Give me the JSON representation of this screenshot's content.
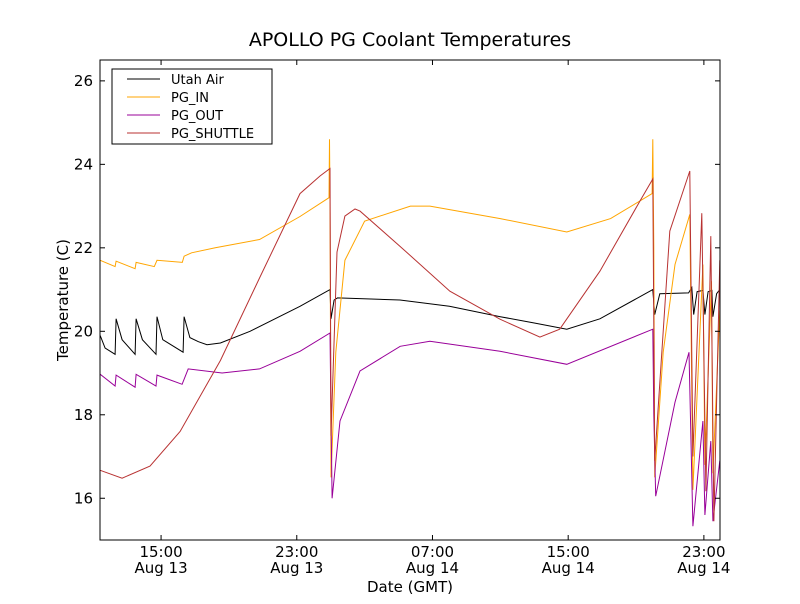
{
  "chart_data": {
    "type": "line",
    "title": "APOLLO PG Coolant Temperatures",
    "xlabel": "Date (GMT)",
    "ylabel": "Temperature (C)",
    "x_units": "hours since Aug 13 00:00 GMT",
    "xlim": [
      11.4,
      47.95
    ],
    "ylim": [
      15,
      26.5
    ],
    "grid": false,
    "legend_position": "top-left",
    "x_ticks": [
      {
        "value": 15,
        "time": "15:00",
        "date": "Aug 13"
      },
      {
        "value": 23,
        "time": "23:00",
        "date": "Aug 13"
      },
      {
        "value": 31,
        "time": "07:00",
        "date": "Aug 14"
      },
      {
        "value": 39,
        "time": "15:00",
        "date": "Aug 14"
      },
      {
        "value": 47,
        "time": "23:00",
        "date": "Aug 14"
      }
    ],
    "y_ticks": [
      16,
      18,
      20,
      22,
      24,
      26
    ],
    "series": [
      {
        "name": "Utah Air",
        "color": "#000000",
        "points": [
          [
            11.41,
            19.9
          ],
          [
            11.7,
            19.6
          ],
          [
            12.29,
            19.45
          ],
          [
            12.35,
            20.3
          ],
          [
            12.7,
            19.8
          ],
          [
            13.47,
            19.45
          ],
          [
            13.53,
            20.3
          ],
          [
            13.9,
            19.8
          ],
          [
            14.7,
            19.45
          ],
          [
            14.76,
            20.35
          ],
          [
            15.1,
            19.8
          ],
          [
            16.3,
            19.5
          ],
          [
            16.36,
            20.35
          ],
          [
            16.7,
            19.85
          ],
          [
            17.2,
            19.75
          ],
          [
            17.71,
            19.68
          ],
          [
            18.5,
            19.72
          ],
          [
            20.24,
            20.0
          ],
          [
            23.19,
            20.6
          ],
          [
            24.96,
            21.0
          ],
          [
            25.02,
            20.3
          ],
          [
            25.2,
            20.75
          ],
          [
            25.4,
            20.8
          ],
          [
            29.08,
            20.75
          ],
          [
            32,
            20.6
          ],
          [
            35,
            20.35
          ],
          [
            37,
            20.2
          ],
          [
            38.92,
            20.05
          ],
          [
            40.87,
            20.3
          ],
          [
            43.99,
            21.0
          ],
          [
            44.1,
            20.4
          ],
          [
            44.4,
            20.9
          ],
          [
            46.1,
            20.92
          ],
          [
            46.29,
            21.05
          ],
          [
            46.4,
            20.4
          ],
          [
            46.6,
            20.95
          ],
          [
            46.94,
            20.98
          ],
          [
            47.06,
            20.4
          ],
          [
            47.25,
            20.95
          ],
          [
            47.47,
            20.98
          ],
          [
            47.53,
            20.35
          ],
          [
            47.75,
            20.9
          ],
          [
            47.94,
            21.0
          ]
        ]
      },
      {
        "name": "PG_IN",
        "color": "#ffa500",
        "points": [
          [
            11.41,
            21.7
          ],
          [
            12.29,
            21.55
          ],
          [
            12.35,
            21.68
          ],
          [
            13.47,
            21.5
          ],
          [
            13.53,
            21.65
          ],
          [
            14.6,
            21.55
          ],
          [
            14.76,
            21.7
          ],
          [
            16.25,
            21.65
          ],
          [
            16.36,
            21.8
          ],
          [
            16.8,
            21.88
          ],
          [
            18.2,
            22.0
          ],
          [
            20.8,
            22.2
          ],
          [
            23.19,
            22.75
          ],
          [
            24.9,
            23.2
          ],
          [
            24.93,
            24.6
          ],
          [
            24.96,
            23.1
          ],
          [
            25.02,
            16.5
          ],
          [
            25.3,
            19.5
          ],
          [
            25.84,
            21.7
          ],
          [
            27.0,
            22.64
          ],
          [
            29.7,
            23.0
          ],
          [
            30.85,
            23.0
          ],
          [
            35,
            22.7
          ],
          [
            38.92,
            22.38
          ],
          [
            41.5,
            22.7
          ],
          [
            43.95,
            23.3
          ],
          [
            43.99,
            24.6
          ],
          [
            44.05,
            22.0
          ],
          [
            44.1,
            16.5
          ],
          [
            44.6,
            19.5
          ],
          [
            45.3,
            21.6
          ],
          [
            46.17,
            22.8
          ],
          [
            46.35,
            16.2
          ],
          [
            46.94,
            21.6
          ],
          [
            47.06,
            16.8
          ],
          [
            47.45,
            21.2
          ],
          [
            47.53,
            16.6
          ],
          [
            47.94,
            20.5
          ]
        ]
      },
      {
        "name": "PG_OUT",
        "color": "#990099",
        "points": [
          [
            11.41,
            18.97
          ],
          [
            12.29,
            18.69
          ],
          [
            12.35,
            18.95
          ],
          [
            13.47,
            18.66
          ],
          [
            13.53,
            18.97
          ],
          [
            14.7,
            18.69
          ],
          [
            14.76,
            18.95
          ],
          [
            16.24,
            18.73
          ],
          [
            16.6,
            19.1
          ],
          [
            18.6,
            19.0
          ],
          [
            20.8,
            19.1
          ],
          [
            23.19,
            19.52
          ],
          [
            24.96,
            19.96
          ],
          [
            25.02,
            18.0
          ],
          [
            25.08,
            16.0
          ],
          [
            25.55,
            17.85
          ],
          [
            26.73,
            19.05
          ],
          [
            29.1,
            19.64
          ],
          [
            30.85,
            19.76
          ],
          [
            34.98,
            19.52
          ],
          [
            38.92,
            19.21
          ],
          [
            43.99,
            20.05
          ],
          [
            44.05,
            18.0
          ],
          [
            44.16,
            16.05
          ],
          [
            45.3,
            18.3
          ],
          [
            46.12,
            19.5
          ],
          [
            46.35,
            15.33
          ],
          [
            46.94,
            17.85
          ],
          [
            47.06,
            15.6
          ],
          [
            47.41,
            17.37
          ],
          [
            47.53,
            15.45
          ],
          [
            47.94,
            16.9
          ]
        ]
      },
      {
        "name": "PG_SHUTTLE",
        "color": "#b83232",
        "points": [
          [
            11.41,
            16.67
          ],
          [
            12.7,
            16.48
          ],
          [
            14.35,
            16.77
          ],
          [
            16.12,
            17.6
          ],
          [
            18.5,
            19.3
          ],
          [
            20.83,
            21.3
          ],
          [
            23.19,
            23.3
          ],
          [
            24.37,
            23.72
          ],
          [
            24.96,
            23.9
          ],
          [
            25.02,
            17.5
          ],
          [
            25.37,
            21.9
          ],
          [
            25.84,
            22.76
          ],
          [
            26.43,
            22.93
          ],
          [
            26.73,
            22.88
          ],
          [
            29.08,
            22.04
          ],
          [
            32.03,
            20.96
          ],
          [
            34.98,
            20.29
          ],
          [
            37.33,
            19.86
          ],
          [
            38.5,
            20.05
          ],
          [
            40.87,
            21.44
          ],
          [
            43.23,
            23.12
          ],
          [
            43.99,
            23.65
          ],
          [
            44.1,
            16.9
          ],
          [
            44.99,
            22.4
          ],
          [
            46.17,
            23.84
          ],
          [
            46.35,
            17.0
          ],
          [
            46.88,
            22.83
          ],
          [
            47.12,
            16.17
          ],
          [
            47.41,
            22.28
          ],
          [
            47.59,
            15.45
          ],
          [
            47.94,
            21.7
          ]
        ]
      }
    ]
  }
}
